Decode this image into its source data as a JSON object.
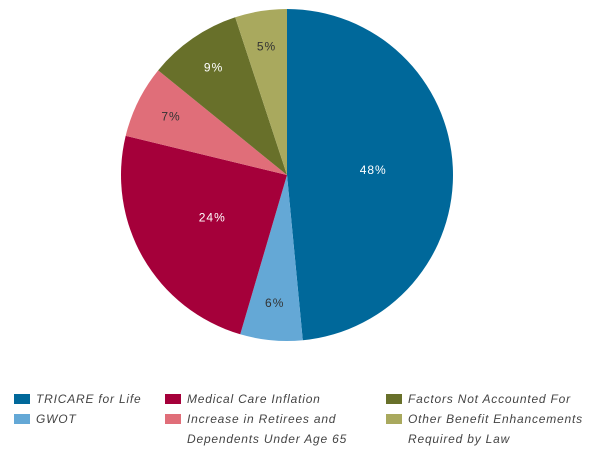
{
  "chart_data": {
    "type": "pie",
    "categories": [
      "TRICARE for Life",
      "GWOT",
      "Medical Care Inflation",
      "Increase in Retirees and Dependents Under Age 65",
      "Factors Not Accounted For",
      "Other Benefit Enhancements Required by Law"
    ],
    "values": [
      48,
      6,
      24,
      7,
      9,
      5
    ],
    "value_labels": [
      "48%",
      "6%",
      "24%",
      "7%",
      "9%",
      "5%"
    ],
    "colors": [
      "#00689a",
      "#64a8d6",
      "#a5003a",
      "#e06e79",
      "#68702a",
      "#a9a95e"
    ],
    "legend": "bottom"
  }
}
